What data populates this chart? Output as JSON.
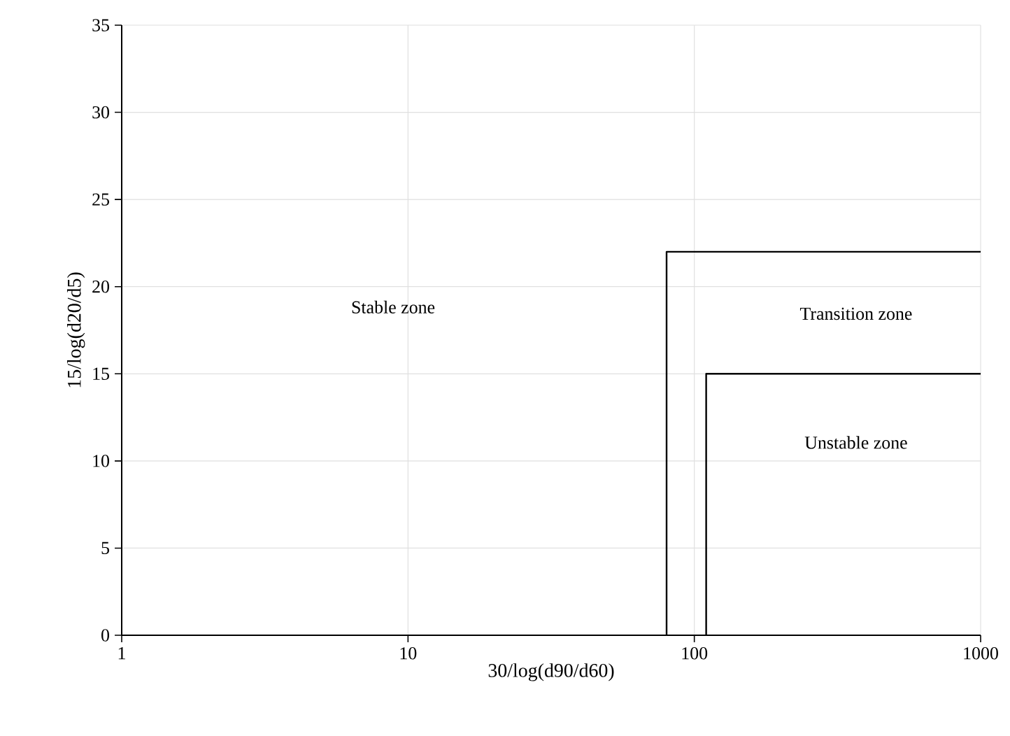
{
  "chart_data": {
    "type": "line",
    "xlabel": "30/log(d90/d60)",
    "ylabel": "15/log(d20/d5)",
    "series": [
      {
        "color": "#000000",
        "x": [
          80,
          80,
          1000
        ],
        "values": [
          0,
          22,
          22
        ]
      },
      {
        "color": "#000000",
        "x": [
          110,
          110,
          1000
        ],
        "values": [
          0,
          15,
          15
        ]
      }
    ],
    "annotations": [
      "Stable zone",
      "Transition zone",
      "Unstable zone"
    ],
    "log": "x",
    "xlim": [
      1,
      1000
    ],
    "xticks": [
      1,
      10,
      100,
      1000
    ],
    "ylim": [
      0,
      35
    ],
    "yticks": [
      0,
      5,
      10,
      15,
      20,
      25,
      30,
      35
    ],
    "grid": true,
    "marker": "none",
    "line_style": "solid"
  }
}
